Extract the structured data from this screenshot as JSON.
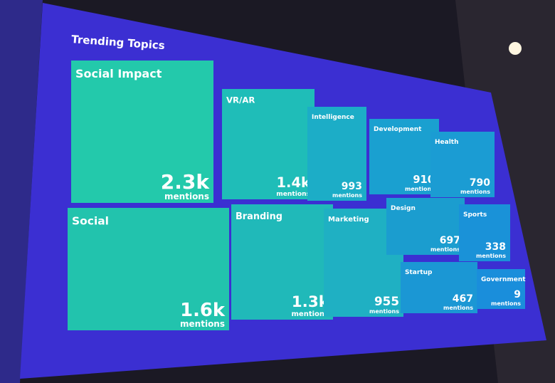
{
  "chart_data": {
    "type": "treemap",
    "title": "Trending Topics",
    "unit_label": "mentions",
    "categories": [
      "Social Impact",
      "Social",
      "VR/AR",
      "Branding",
      "Intelligence",
      "Marketing",
      "Development",
      "Health",
      "Design",
      "Sports",
      "Startup",
      "Government"
    ],
    "values": [
      2300,
      1600,
      1400,
      1300,
      993,
      955,
      910,
      790,
      697,
      338,
      467,
      9
    ],
    "value_labels": [
      "2.3k",
      "1.6k",
      "1.4k",
      "1.3k",
      "993",
      "955",
      "910",
      "790",
      "697",
      "338",
      "467",
      "9"
    ],
    "colors": [
      "#23c9ab",
      "#22c3ad",
      "#1fbdb8",
      "#20b9b9",
      "#1cadc7",
      "#1fb0c3",
      "#1aa0d0",
      "#1b9cd3",
      "#1b9dcf",
      "#1a92d8",
      "#1b97d4",
      "#1a8edb"
    ]
  }
}
